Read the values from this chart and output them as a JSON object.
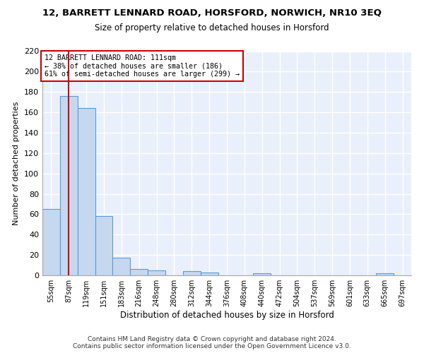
{
  "title": "12, BARRETT LENNARD ROAD, HORSFORD, NORWICH, NR10 3EQ",
  "subtitle": "Size of property relative to detached houses in Horsford",
  "xlabel": "Distribution of detached houses by size in Horsford",
  "ylabel": "Number of detached properties",
  "bar_color": "#c5d8f0",
  "bar_edge_color": "#5b9bd5",
  "background_color": "#eaf0fb",
  "grid_color": "#ffffff",
  "annotation_line_color": "#cc0000",
  "annotation_box_color": "#cc0000",
  "fig_background": "#ffffff",
  "bin_labels": [
    "55sqm",
    "87sqm",
    "119sqm",
    "151sqm",
    "183sqm",
    "216sqm",
    "248sqm",
    "280sqm",
    "312sqm",
    "344sqm",
    "376sqm",
    "408sqm",
    "440sqm",
    "472sqm",
    "504sqm",
    "537sqm",
    "569sqm",
    "601sqm",
    "633sqm",
    "665sqm",
    "697sqm"
  ],
  "bar_heights": [
    65,
    176,
    164,
    58,
    17,
    6,
    5,
    0,
    4,
    3,
    0,
    0,
    2,
    0,
    0,
    0,
    0,
    0,
    0,
    2,
    0
  ],
  "property_bin_index": 1,
  "annotation_text_line1": "12 BARRETT LENNARD ROAD: 111sqm",
  "annotation_text_line2": "← 38% of detached houses are smaller (186)",
  "annotation_text_line3": "61% of semi-detached houses are larger (299) →",
  "footnote1": "Contains HM Land Registry data © Crown copyright and database right 2024.",
  "footnote2": "Contains public sector information licensed under the Open Government Licence v3.0.",
  "ylim": [
    0,
    220
  ],
  "yticks": [
    0,
    20,
    40,
    60,
    80,
    100,
    120,
    140,
    160,
    180,
    200,
    220
  ]
}
